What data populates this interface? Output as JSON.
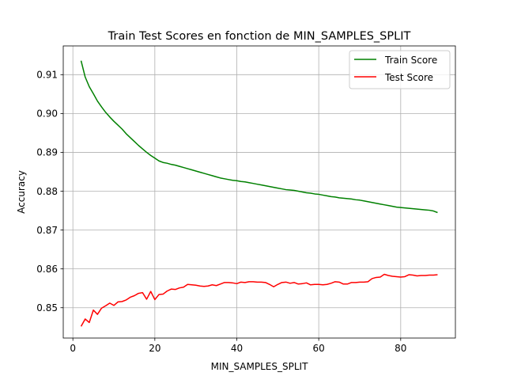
{
  "chart_data": {
    "type": "line",
    "title": "Train Test Scores en fonction de MIN_SAMPLES_SPLIT",
    "xlabel": "MIN_SAMPLES_SPLIT",
    "ylabel": "Accuracy",
    "xlim": [
      -2.35,
      93.35
    ],
    "ylim": [
      0.8422,
      0.9174
    ],
    "xticks": [
      0,
      20,
      40,
      60,
      80
    ],
    "xtick_labels": [
      "0",
      "20",
      "40",
      "60",
      "80"
    ],
    "yticks": [
      0.85,
      0.86,
      0.87,
      0.88,
      0.89,
      0.9,
      0.91
    ],
    "ytick_labels": [
      "0.85",
      "0.86",
      "0.87",
      "0.88",
      "0.89",
      "0.90",
      "0.91"
    ],
    "grid": true,
    "legend_position": "upper right",
    "x": [
      2,
      3,
      4,
      5,
      6,
      7,
      8,
      9,
      10,
      11,
      12,
      13,
      14,
      15,
      16,
      17,
      18,
      19,
      20,
      21,
      22,
      23,
      24,
      25,
      26,
      27,
      28,
      29,
      30,
      31,
      32,
      33,
      34,
      35,
      36,
      37,
      38,
      39,
      40,
      41,
      42,
      43,
      44,
      45,
      46,
      47,
      48,
      49,
      50,
      51,
      52,
      53,
      54,
      55,
      56,
      57,
      58,
      59,
      60,
      61,
      62,
      63,
      64,
      65,
      66,
      67,
      68,
      69,
      70,
      71,
      72,
      73,
      74,
      75,
      76,
      77,
      78,
      79,
      80,
      81,
      82,
      83,
      84,
      85,
      86,
      87,
      88,
      89
    ],
    "series": [
      {
        "name": "Train Score",
        "color": "#008000",
        "values": [
          0.9136,
          0.9094,
          0.9069,
          0.9051,
          0.9032,
          0.9017,
          0.9003,
          0.8991,
          0.898,
          0.897,
          0.896,
          0.8948,
          0.8938,
          0.8928,
          0.8918,
          0.8909,
          0.89,
          0.8892,
          0.8885,
          0.8878,
          0.8874,
          0.8872,
          0.8869,
          0.8867,
          0.8864,
          0.8861,
          0.8858,
          0.8855,
          0.8852,
          0.8849,
          0.8846,
          0.8843,
          0.884,
          0.8837,
          0.8834,
          0.8832,
          0.883,
          0.8828,
          0.8827,
          0.8825,
          0.8824,
          0.8822,
          0.882,
          0.8818,
          0.8816,
          0.8814,
          0.8812,
          0.881,
          0.8808,
          0.8806,
          0.8804,
          0.8803,
          0.8802,
          0.88,
          0.8798,
          0.8796,
          0.8795,
          0.8793,
          0.8792,
          0.879,
          0.8788,
          0.8786,
          0.8785,
          0.8783,
          0.8782,
          0.8781,
          0.878,
          0.8778,
          0.8777,
          0.8775,
          0.8773,
          0.8771,
          0.8769,
          0.8767,
          0.8765,
          0.8763,
          0.8761,
          0.8759,
          0.8758,
          0.8757,
          0.8756,
          0.8755,
          0.8754,
          0.8753,
          0.8752,
          0.8751,
          0.8749,
          0.8745
        ]
      },
      {
        "name": "Test Score",
        "color": "#ff0000",
        "values": [
          0.8452,
          0.8471,
          0.8462,
          0.8494,
          0.8483,
          0.8499,
          0.8505,
          0.8512,
          0.8506,
          0.8515,
          0.8516,
          0.852,
          0.8527,
          0.8531,
          0.8537,
          0.8539,
          0.8522,
          0.8542,
          0.8521,
          0.8534,
          0.8535,
          0.8543,
          0.8548,
          0.8547,
          0.8551,
          0.8553,
          0.856,
          0.8559,
          0.8558,
          0.8556,
          0.8555,
          0.8556,
          0.8559,
          0.8557,
          0.8561,
          0.8565,
          0.8565,
          0.8564,
          0.8562,
          0.8566,
          0.8565,
          0.8567,
          0.8567,
          0.8566,
          0.8566,
          0.8565,
          0.856,
          0.8554,
          0.856,
          0.8565,
          0.8566,
          0.8563,
          0.8565,
          0.8561,
          0.8562,
          0.8564,
          0.8559,
          0.856,
          0.856,
          0.8559,
          0.856,
          0.8563,
          0.8567,
          0.8566,
          0.8561,
          0.8561,
          0.8565,
          0.8565,
          0.8566,
          0.8566,
          0.8567,
          0.8575,
          0.8578,
          0.8579,
          0.8586,
          0.8583,
          0.8581,
          0.858,
          0.8579,
          0.858,
          0.8585,
          0.8584,
          0.8582,
          0.8583,
          0.8583,
          0.8584,
          0.8584,
          0.8585
        ]
      }
    ]
  }
}
